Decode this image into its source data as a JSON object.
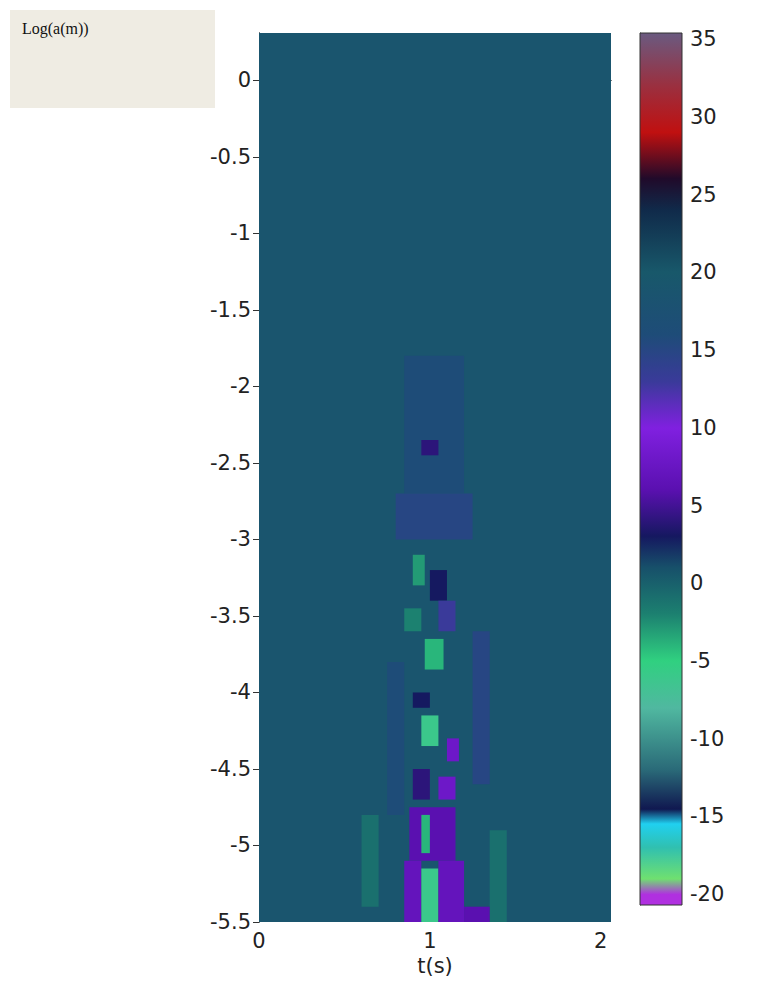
{
  "chart_data": {
    "type": "heatmap",
    "x_label": "t(s)",
    "y_label": "Log(a(m))",
    "xlim": [
      0,
      2.06
    ],
    "xticks": [
      0,
      1,
      2
    ],
    "ylim": [
      -5.5,
      0.31
    ],
    "yticks": [
      -5.5,
      -5,
      -4.5,
      -4,
      -3.5,
      -3,
      -2.5,
      -2,
      -1.5,
      -1,
      -0.5,
      0
    ],
    "cells": [
      [
        0,
        2.06,
        -5.5,
        0.31,
        19
      ],
      [
        0.85,
        1.2,
        -2.7,
        -1.8,
        16
      ],
      [
        0.95,
        1.05,
        -2.45,
        -2.35,
        4
      ],
      [
        0.8,
        1.25,
        -3.0,
        -2.7,
        15
      ],
      [
        0.75,
        0.85,
        -4.8,
        -3.8,
        16
      ],
      [
        1.25,
        1.35,
        -4.6,
        -3.6,
        15
      ],
      [
        0.6,
        0.7,
        -5.4,
        -4.8,
        -1
      ],
      [
        1.35,
        1.45,
        -5.5,
        -4.9,
        -1
      ],
      [
        0.9,
        0.97,
        -3.3,
        -3.1,
        -3
      ],
      [
        1.0,
        1.1,
        -3.4,
        -3.2,
        3
      ],
      [
        0.85,
        0.95,
        -3.6,
        -3.45,
        -2
      ],
      [
        1.05,
        1.15,
        -3.6,
        -3.4,
        13
      ],
      [
        0.97,
        1.08,
        -3.85,
        -3.65,
        -4
      ],
      [
        0.9,
        1.0,
        -4.1,
        -4.0,
        3
      ],
      [
        0.95,
        1.05,
        -4.35,
        -4.15,
        -6
      ],
      [
        1.1,
        1.17,
        -4.45,
        -4.3,
        8
      ],
      [
        0.9,
        1.0,
        -4.7,
        -4.5,
        4
      ],
      [
        1.05,
        1.15,
        -4.7,
        -4.55,
        8
      ],
      [
        0.88,
        1.15,
        -5.1,
        -4.75,
        6
      ],
      [
        0.95,
        1.0,
        -5.05,
        -4.8,
        -4
      ],
      [
        0.85,
        0.95,
        -5.5,
        -5.1,
        7
      ],
      [
        0.95,
        1.05,
        -5.5,
        -5.15,
        -6
      ],
      [
        1.05,
        1.2,
        -5.5,
        -5.1,
        7
      ],
      [
        1.2,
        1.35,
        -5.5,
        -5.4,
        6
      ]
    ],
    "colorbar_lim": [
      -20.7,
      35.4
    ],
    "colorbar_ticks": [
      -20,
      -15,
      -10,
      -5,
      0,
      5,
      10,
      15,
      20,
      25,
      30,
      35
    ]
  }
}
